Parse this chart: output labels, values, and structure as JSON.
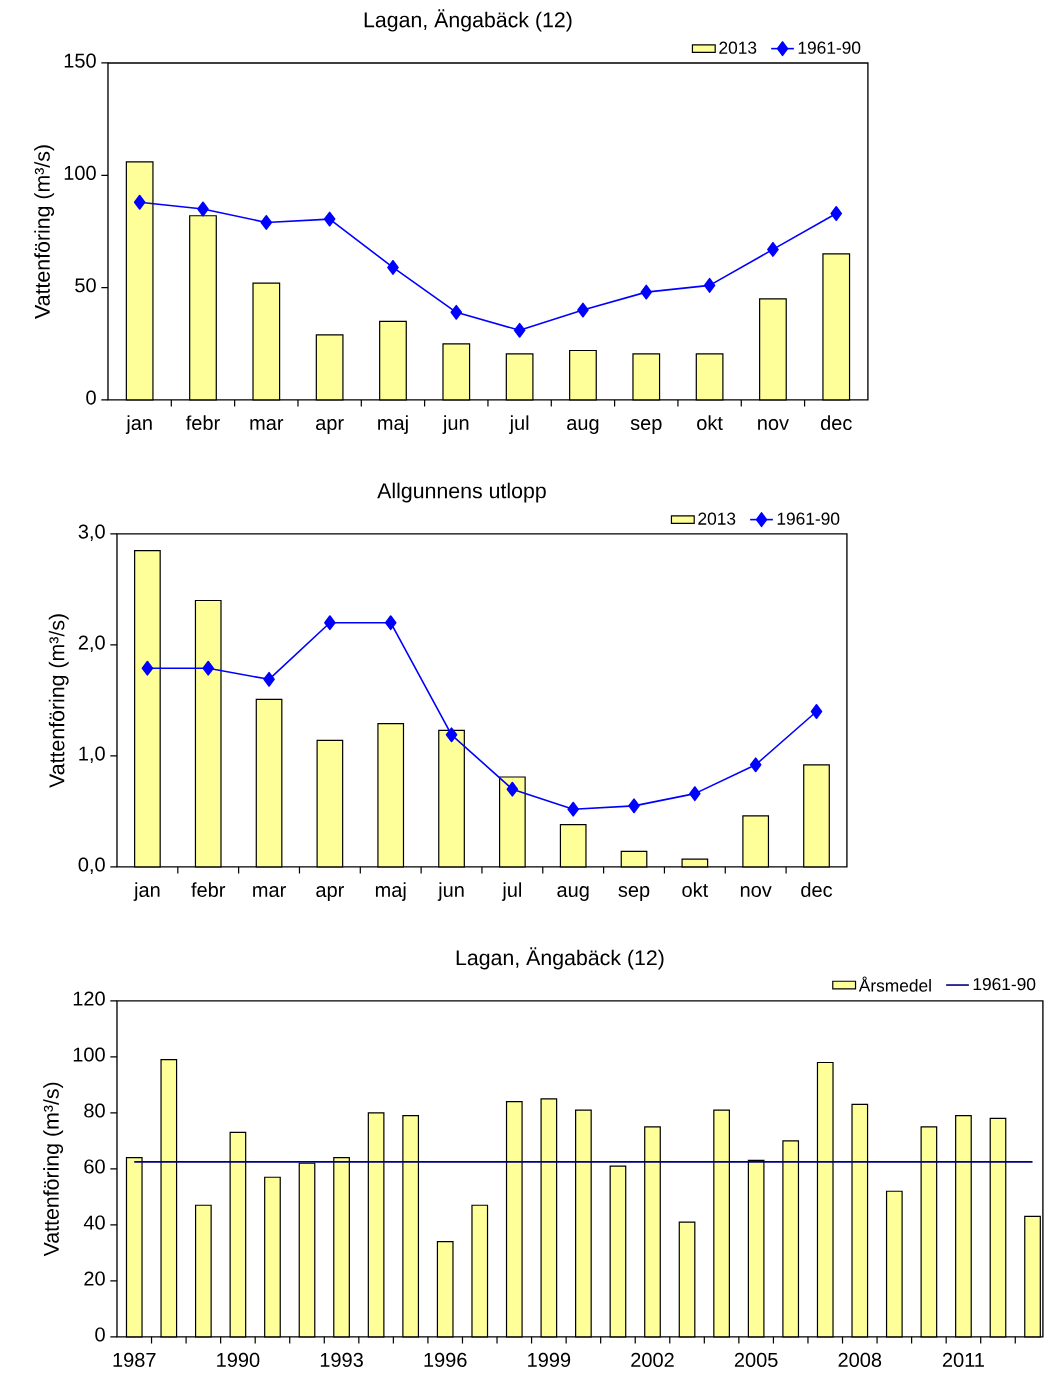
{
  "chart_data": [
    {
      "type": "bar",
      "title": "Lagan, Ängabäck (12)",
      "ylabel": "Vattenföring (m³/s)",
      "legend": "top right",
      "categories": [
        "jan",
        "febr",
        "mar",
        "apr",
        "maj",
        "jun",
        "jul",
        "aug",
        "sep",
        "okt",
        "nov",
        "dec"
      ],
      "ylim": [
        0,
        150
      ],
      "yticks": [
        0,
        50,
        100,
        150
      ],
      "series": [
        {
          "name": "2013",
          "color": "#ffff99",
          "values": [
            106,
            82,
            52,
            29,
            35,
            25,
            20.5,
            22,
            20.5,
            20.5,
            45,
            65
          ]
        },
        {
          "name": "1961-90",
          "type": "line",
          "color": "#0000ff",
          "marker": "diamond",
          "values": [
            88,
            85,
            79,
            80.5,
            59,
            39,
            31,
            40,
            48,
            51,
            67,
            83
          ]
        }
      ]
    },
    {
      "type": "bar",
      "title": "Allgunnens utlopp",
      "ylabel": "Vattenföring (m³/s)",
      "legend": "top right",
      "categories": [
        "jan",
        "febr",
        "mar",
        "apr",
        "maj",
        "jun",
        "jul",
        "aug",
        "sep",
        "okt",
        "nov",
        "dec"
      ],
      "ylim": [
        0,
        3
      ],
      "yticks": [
        {
          "value": 0,
          "label": "0,0"
        },
        {
          "value": 1,
          "label": "1,0"
        },
        {
          "value": 2,
          "label": "2,0"
        },
        {
          "value": 3,
          "label": "3,0"
        }
      ],
      "series": [
        {
          "name": "2013",
          "color": "#ffff99",
          "values": [
            2.85,
            2.4,
            1.51,
            1.14,
            1.29,
            1.23,
            0.81,
            0.38,
            0.14,
            0.07,
            0.46,
            0.92
          ]
        },
        {
          "name": "1961-90",
          "type": "line",
          "color": "#0000ff",
          "marker": "diamond",
          "values": [
            1.79,
            1.79,
            1.69,
            2.2,
            2.2,
            1.19,
            0.7,
            0.52,
            0.55,
            0.66,
            0.92,
            1.4
          ]
        }
      ]
    },
    {
      "type": "bar",
      "title": "Lagan, Ängabäck (12)",
      "ylabel": "Vattenföring (m³/s)",
      "legend": "top right",
      "x": [
        1987,
        1988,
        1989,
        1990,
        1991,
        1992,
        1993,
        1994,
        1995,
        1996,
        1997,
        1998,
        1999,
        2000,
        2001,
        2002,
        2003,
        2004,
        2005,
        2006,
        2007,
        2008,
        2009,
        2010,
        2011,
        2012,
        2013
      ],
      "xlim": [
        1986.5,
        2013.3
      ],
      "xticks": [
        1987,
        1990,
        1993,
        1996,
        1999,
        2002,
        2005,
        2008,
        2011
      ],
      "ylim": [
        0,
        120
      ],
      "yticks": [
        0,
        20,
        40,
        60,
        80,
        100,
        120
      ],
      "series": [
        {
          "name": "Årsmedel",
          "color": "#ffff99",
          "values": [
            64,
            99,
            47,
            73,
            57,
            62,
            64,
            80,
            79,
            34,
            47,
            84,
            85,
            81,
            61,
            75,
            41,
            81,
            63,
            70,
            98,
            83,
            52,
            75,
            79,
            78,
            43
          ]
        },
        {
          "name": "1961-90",
          "type": "line",
          "color": "#000080",
          "x": [
            1987,
            2013
          ],
          "values": [
            62.5,
            62.5
          ]
        }
      ]
    }
  ]
}
